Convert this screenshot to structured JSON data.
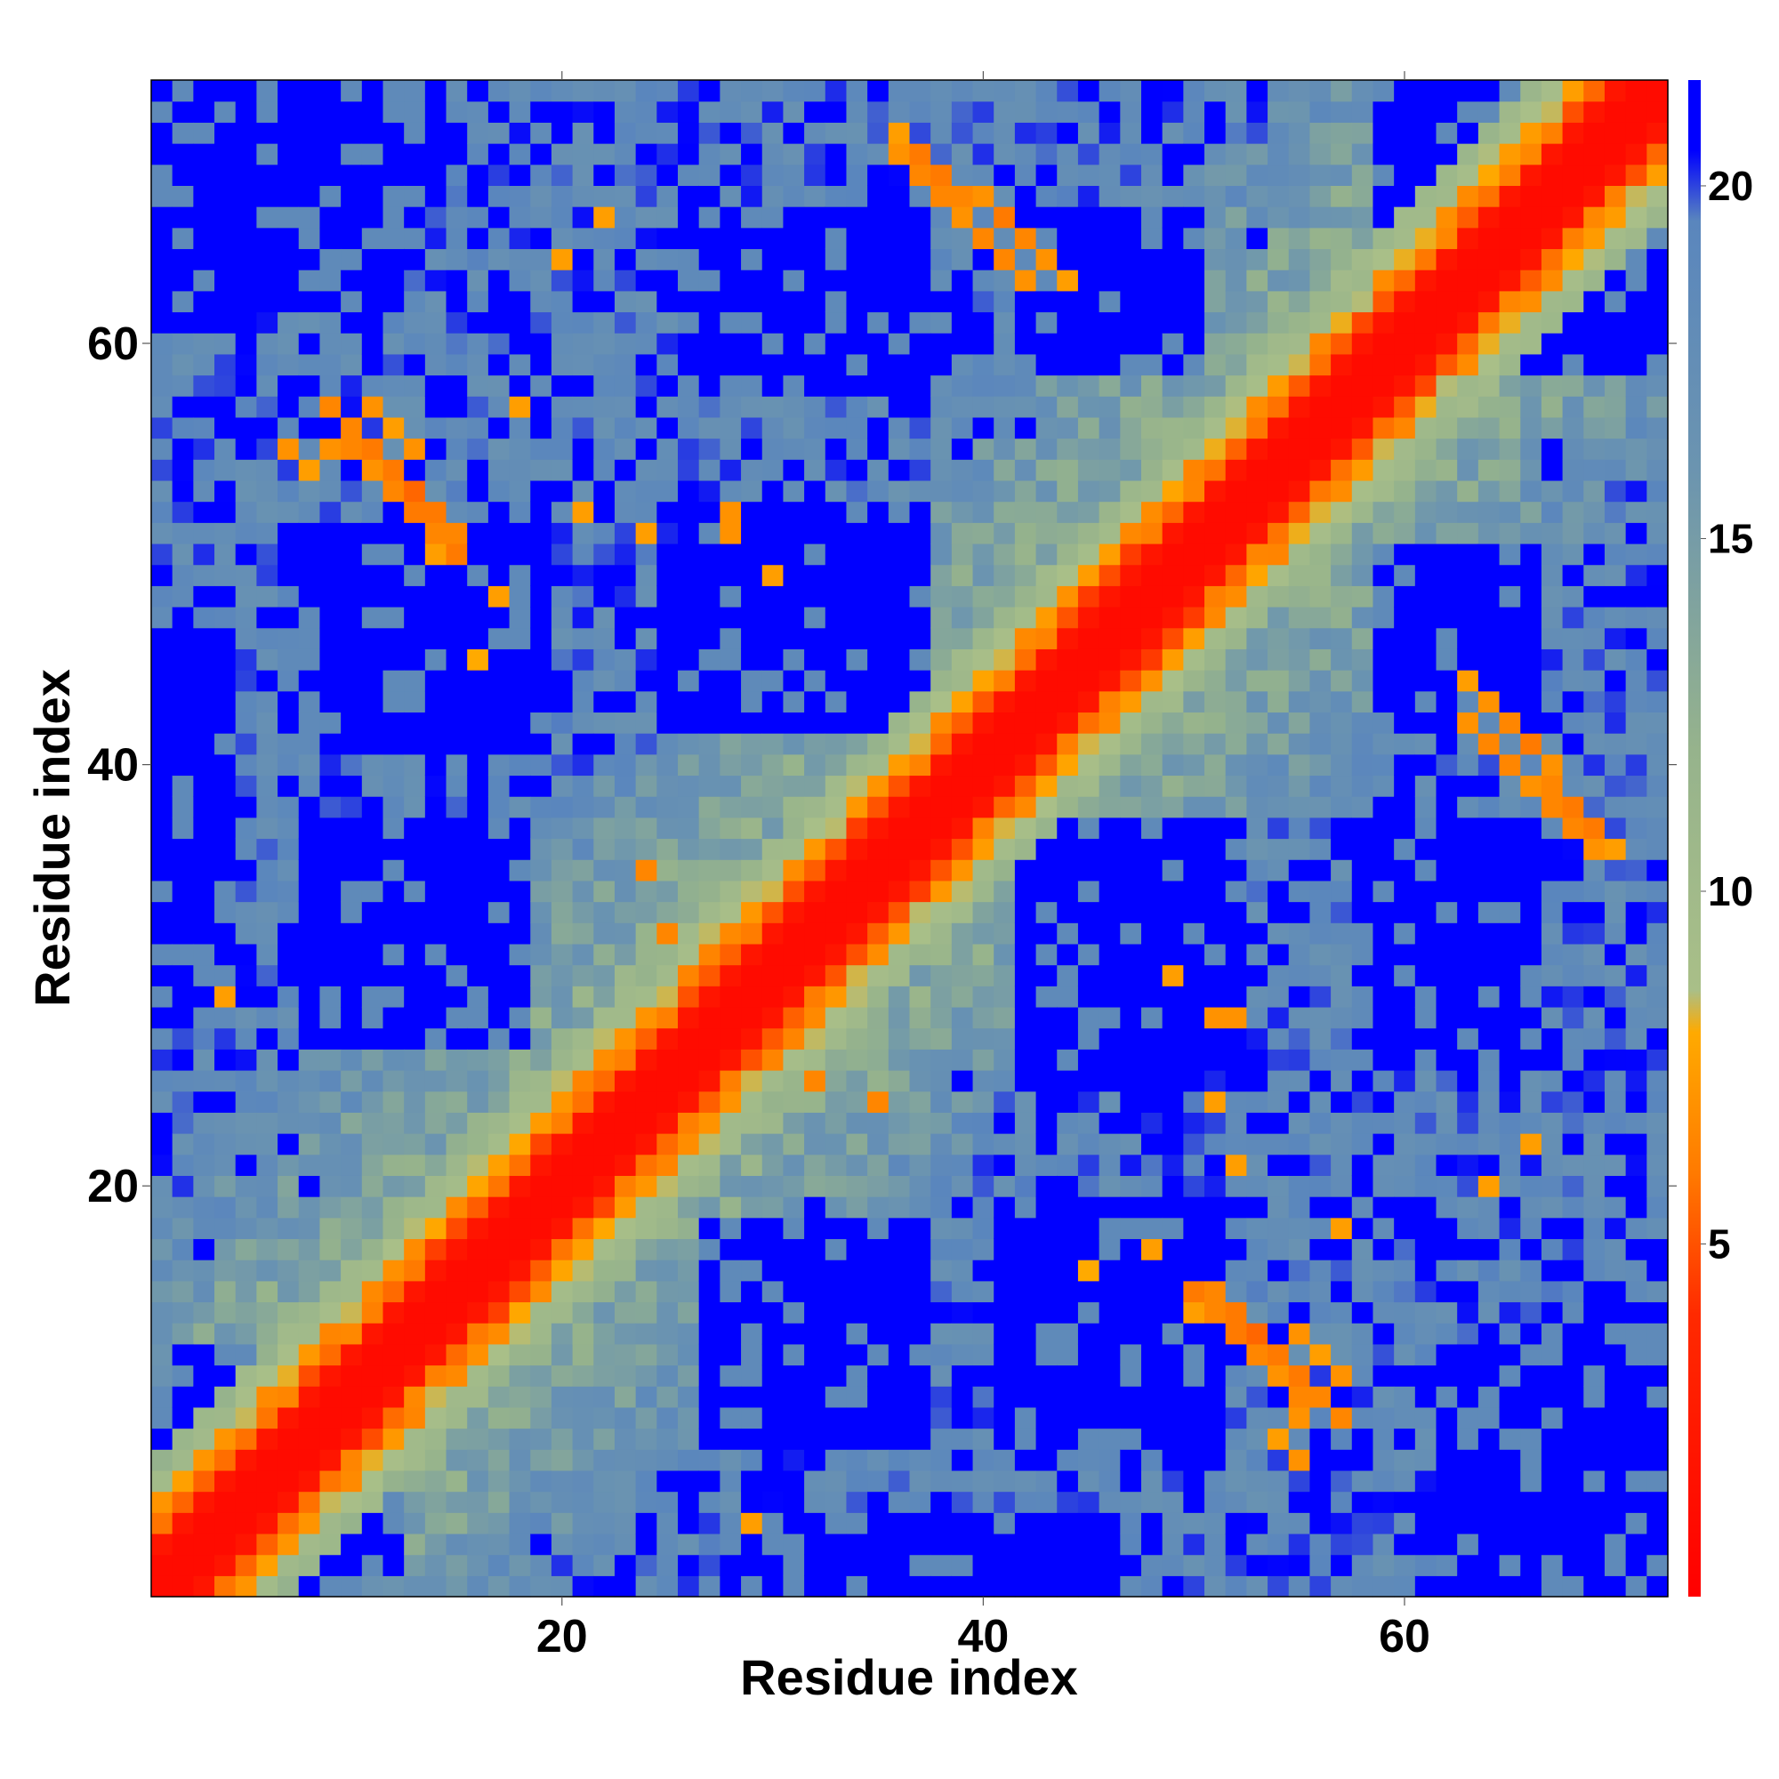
{
  "chart_data": {
    "type": "heatmap",
    "title": "",
    "xlabel": "Residue index",
    "ylabel": "Residue index",
    "n_residues": 72,
    "xlim": [
      0.5,
      72.5
    ],
    "ylim": [
      0.5,
      72.5
    ],
    "x_ticks": [
      20,
      40,
      60
    ],
    "y_ticks": [
      20,
      40,
      60
    ],
    "symmetric": true,
    "value_description": "pairwise residue distance",
    "colorbar": {
      "range": [
        0,
        21.5
      ],
      "ticks": [
        5,
        10,
        15,
        20
      ],
      "stops": [
        {
          "value": 0,
          "color": "#ff0000"
        },
        {
          "value": 4,
          "color": "#ff2a00"
        },
        {
          "value": 6,
          "color": "#ff7a00"
        },
        {
          "value": 8,
          "color": "#ffaa00"
        },
        {
          "value": 8.6,
          "color": "#a9bf88"
        },
        {
          "value": 12,
          "color": "#96b38c"
        },
        {
          "value": 16,
          "color": "#6b94b0"
        },
        {
          "value": 19.5,
          "color": "#5a86bd"
        },
        {
          "value": 20.5,
          "color": "#0000ff"
        }
      ]
    },
    "diagonal_band": [
      {
        "offset": 0,
        "value": 1
      },
      {
        "offset": 1,
        "value": 1
      },
      {
        "offset": 2,
        "value": 2
      },
      {
        "offset": 3,
        "value": 5.5
      },
      {
        "offset": 4,
        "value": 7.5
      },
      {
        "offset": 5,
        "value": 9.5
      },
      {
        "offset": 6,
        "value": 11
      }
    ],
    "background_gradient": {
      "min_value": 10,
      "max_value": 19,
      "far_offset": 20
    },
    "contacts": [
      {
        "i": 9,
        "j": 57,
        "value": 6.5
      },
      {
        "i": 10,
        "j": 56,
        "value": 6.5
      },
      {
        "i": 11,
        "j": 55,
        "value": 6
      },
      {
        "i": 12,
        "j": 54,
        "value": 6
      },
      {
        "i": 13,
        "j": 53,
        "value": 5.5
      },
      {
        "i": 14,
        "j": 52,
        "value": 6
      },
      {
        "i": 15,
        "j": 51,
        "value": 6.5
      },
      {
        "i": 13,
        "j": 55,
        "value": 7
      },
      {
        "i": 12,
        "j": 56,
        "value": 7.5
      },
      {
        "i": 11,
        "j": 57,
        "value": 7
      },
      {
        "i": 14,
        "j": 50,
        "value": 7.5
      },
      {
        "i": 36,
        "j": 70,
        "value": 6.5
      },
      {
        "i": 37,
        "j": 69,
        "value": 6
      },
      {
        "i": 38,
        "j": 68,
        "value": 6
      },
      {
        "i": 39,
        "j": 67,
        "value": 6.5
      },
      {
        "i": 40,
        "j": 67,
        "value": 7
      },
      {
        "i": 41,
        "j": 66,
        "value": 6
      },
      {
        "i": 42,
        "j": 65,
        "value": 6.5
      },
      {
        "i": 43,
        "j": 64,
        "value": 7
      },
      {
        "i": 44,
        "j": 63,
        "value": 7.5
      },
      {
        "i": 50,
        "j": 15,
        "value": 6
      },
      {
        "i": 51,
        "j": 14,
        "value": 6.5
      },
      {
        "i": 52,
        "j": 13,
        "value": 6
      },
      {
        "i": 53,
        "j": 12,
        "value": 6.5
      },
      {
        "i": 54,
        "j": 11,
        "value": 7
      },
      {
        "i": 55,
        "j": 10,
        "value": 6.5
      },
      {
        "i": 55,
        "j": 9,
        "value": 7
      },
      {
        "i": 54,
        "j": 8,
        "value": 7.5
      },
      {
        "i": 63,
        "j": 42,
        "value": 7
      },
      {
        "i": 64,
        "j": 41,
        "value": 6.5
      },
      {
        "i": 65,
        "j": 40,
        "value": 6.5
      },
      {
        "i": 66,
        "j": 39,
        "value": 7
      },
      {
        "i": 67,
        "j": 38,
        "value": 6.5
      },
      {
        "i": 68,
        "j": 37,
        "value": 6.5
      },
      {
        "i": 69,
        "j": 36,
        "value": 7
      },
      {
        "i": 70,
        "j": 36,
        "value": 7.5
      },
      {
        "i": 24,
        "j": 51,
        "value": 7.5
      },
      {
        "i": 28,
        "j": 51,
        "value": 7
      },
      {
        "i": 30,
        "j": 49,
        "value": 7.5
      },
      {
        "i": 16,
        "j": 45,
        "value": 8
      },
      {
        "i": 20,
        "j": 64,
        "value": 7.5
      },
      {
        "i": 22,
        "j": 66,
        "value": 7.5
      },
      {
        "i": 25,
        "j": 32,
        "value": 6.5
      },
      {
        "i": 35,
        "j": 24,
        "value": 6.5
      },
      {
        "i": 52,
        "j": 28,
        "value": 7
      },
      {
        "i": 52,
        "j": 21,
        "value": 7.5
      },
      {
        "i": 48,
        "j": 17,
        "value": 7.5
      },
      {
        "i": 55,
        "j": 7,
        "value": 7
      },
      {
        "i": 57,
        "j": 18,
        "value": 7.5
      },
      {
        "i": 29,
        "j": 4,
        "value": 7.5
      }
    ],
    "far_regions": [
      {
        "i_range": [
          2,
          10
        ],
        "j_range": [
          1,
          12
        ]
      },
      {
        "i_range": [
          1,
          8
        ],
        "j_range": [
          62,
          72
        ]
      },
      {
        "i_range": [
          62,
          72
        ],
        "j_range": [
          1,
          12
        ]
      },
      {
        "i_range": [
          63,
          72
        ],
        "j_range": [
          62,
          72
        ]
      },
      {
        "i_range": [
          7,
          14
        ],
        "j_range": [
          68,
          72
        ]
      },
      {
        "i_range": [
          26,
          37
        ],
        "j_range": [
          58,
          66
        ]
      },
      {
        "i_range": [
          25,
          34
        ],
        "j_range": [
          42,
          50
        ]
      },
      {
        "i_range": [
          30,
          37
        ],
        "j_range": [
          8,
          18
        ]
      },
      {
        "i_range": [
          8,
          18
        ],
        "j_range": [
          27,
          36
        ]
      },
      {
        "i_range": [
          42,
          52
        ],
        "j_range": [
          27,
          37
        ]
      },
      {
        "i_range": [
          41,
          51
        ],
        "j_range": [
          8,
          19
        ]
      },
      {
        "i_range": [
          59,
          66
        ],
        "j_range": [
          42,
          50
        ]
      },
      {
        "i_range": [
          59,
          68
        ],
        "j_range": [
          62,
          72
        ]
      },
      {
        "i_range": [
          1,
          4
        ],
        "j_range": [
          28,
          46
        ]
      }
    ]
  }
}
